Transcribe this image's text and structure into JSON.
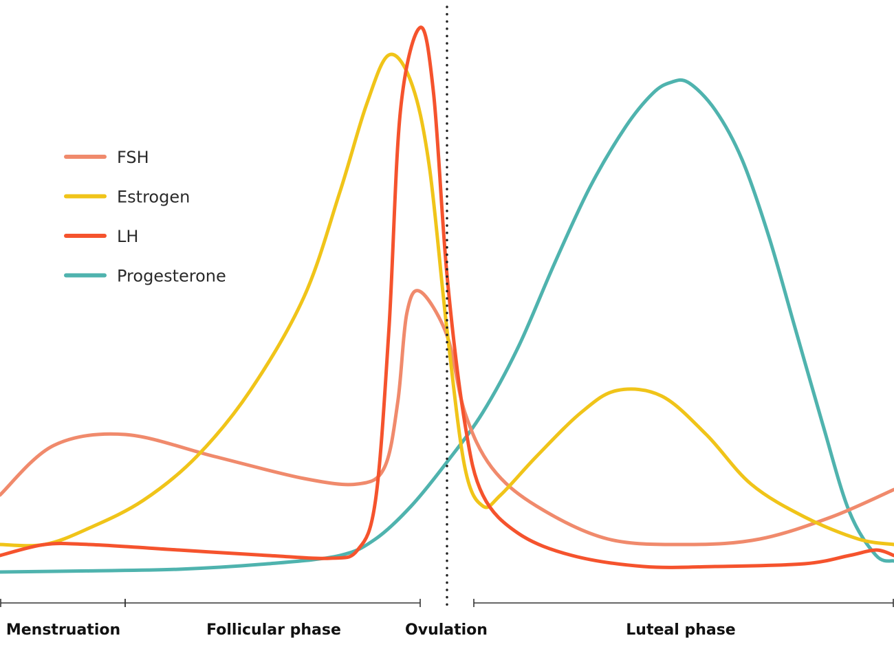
{
  "chart_data": {
    "type": "line",
    "title": "",
    "xlabel": "",
    "ylabel": "",
    "grid": false,
    "legend_position": "left",
    "x_unit": "cycle position (0–100)",
    "xlim": [
      0,
      100
    ],
    "ylim": [
      0,
      100
    ],
    "ovulation_marker_x": 50,
    "series": [
      {
        "name": "FSH",
        "color": "#f08a6c",
        "points": [
          [
            0,
            15
          ],
          [
            6,
            24
          ],
          [
            14,
            26
          ],
          [
            24,
            22
          ],
          [
            34,
            18
          ],
          [
            40,
            17
          ],
          [
            43,
            20
          ],
          [
            44.5,
            32
          ],
          [
            45.5,
            48
          ],
          [
            47,
            52
          ],
          [
            50,
            44
          ],
          [
            52,
            30
          ],
          [
            55,
            20
          ],
          [
            60,
            13
          ],
          [
            68,
            7
          ],
          [
            77,
            6
          ],
          [
            85,
            7
          ],
          [
            93,
            11
          ],
          [
            100,
            16
          ]
        ]
      },
      {
        "name": "Estrogen",
        "color": "#f0c419",
        "points": [
          [
            0,
            6
          ],
          [
            5,
            6
          ],
          [
            10,
            9
          ],
          [
            16,
            14
          ],
          [
            22,
            22
          ],
          [
            28,
            34
          ],
          [
            34,
            51
          ],
          [
            38,
            70
          ],
          [
            41,
            86
          ],
          [
            43.5,
            95
          ],
          [
            46,
            90
          ],
          [
            48,
            75
          ],
          [
            50,
            45
          ],
          [
            52,
            20
          ],
          [
            54,
            13
          ],
          [
            56,
            15
          ],
          [
            60,
            22
          ],
          [
            65,
            30
          ],
          [
            69,
            34
          ],
          [
            74,
            33
          ],
          [
            79,
            26
          ],
          [
            84,
            17
          ],
          [
            90,
            11
          ],
          [
            96,
            7
          ],
          [
            100,
            6
          ]
        ]
      },
      {
        "name": "LH",
        "color": "#f5532d",
        "points": [
          [
            0,
            4
          ],
          [
            5,
            6
          ],
          [
            10,
            6
          ],
          [
            20,
            5
          ],
          [
            30,
            4
          ],
          [
            37,
            3.5
          ],
          [
            40,
            5
          ],
          [
            42,
            14
          ],
          [
            43.5,
            45
          ],
          [
            44.8,
            85
          ],
          [
            47,
            100
          ],
          [
            48.5,
            88
          ],
          [
            50,
            55
          ],
          [
            52,
            28
          ],
          [
            54,
            15
          ],
          [
            58,
            8
          ],
          [
            64,
            4
          ],
          [
            72,
            2
          ],
          [
            80,
            2
          ],
          [
            90,
            2.5
          ],
          [
            95,
            4
          ],
          [
            98,
            5
          ],
          [
            100,
            4
          ]
        ]
      },
      {
        "name": "Progesterone",
        "color": "#4fb3ae",
        "points": [
          [
            0,
            1
          ],
          [
            10,
            1.2
          ],
          [
            20,
            1.5
          ],
          [
            30,
            2.5
          ],
          [
            38,
            4
          ],
          [
            42,
            7
          ],
          [
            46,
            13
          ],
          [
            50,
            21
          ],
          [
            54,
            30
          ],
          [
            58,
            42
          ],
          [
            62,
            57
          ],
          [
            66,
            71
          ],
          [
            70,
            82
          ],
          [
            73,
            88
          ],
          [
            75,
            90
          ],
          [
            77,
            90
          ],
          [
            80,
            85
          ],
          [
            83,
            76
          ],
          [
            86,
            62
          ],
          [
            89,
            45
          ],
          [
            92,
            28
          ],
          [
            95,
            12
          ],
          [
            98,
            4
          ],
          [
            100,
            3
          ]
        ]
      }
    ],
    "phases": [
      {
        "label": "Menstruation",
        "range": [
          0,
          14
        ]
      },
      {
        "label": "Follicular phase",
        "range": [
          14,
          47
        ]
      },
      {
        "label": "Ovulation",
        "range": [
          47,
          53
        ]
      },
      {
        "label": "Luteal phase",
        "range": [
          53,
          100
        ]
      }
    ]
  }
}
